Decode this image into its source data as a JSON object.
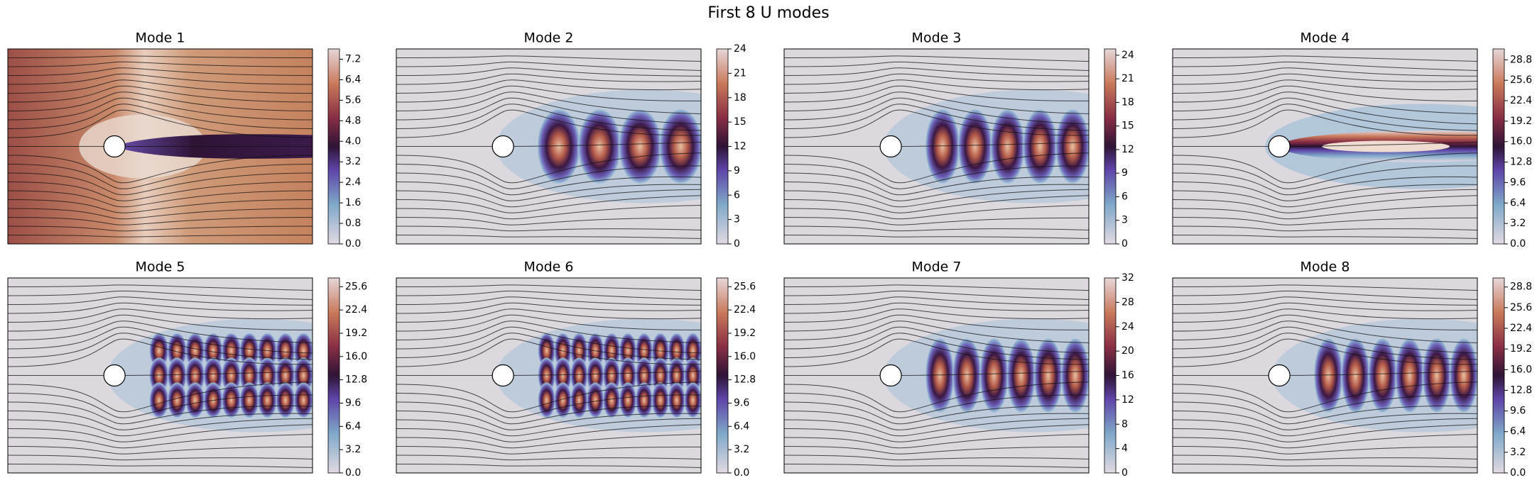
{
  "title": "First 8 U modes",
  "chart_data": [
    {
      "type": "contour",
      "title": "Mode 1",
      "ylim": [
        0,
        7.6
      ],
      "yticks": [
        {
          "value": 0,
          "label": "0.0"
        },
        0.8,
        1.6,
        2.4,
        3.2,
        {
          "value": 4,
          "label": "4.0"
        },
        4.8,
        5.6,
        6.4,
        7.2
      ]
    },
    {
      "type": "contour",
      "title": "Mode 2",
      "ylim": [
        0,
        24
      ],
      "yticks": [
        0,
        3,
        6,
        9,
        12,
        15,
        18,
        21,
        24
      ]
    },
    {
      "type": "contour",
      "title": "Mode 3",
      "ylim": [
        0,
        24.8
      ],
      "yticks": [
        0,
        3,
        6,
        9,
        12,
        15,
        18,
        21,
        24
      ]
    },
    {
      "type": "contour",
      "title": "Mode 4",
      "ylim": [
        0,
        30.5
      ],
      "yticks": [
        {
          "value": 0,
          "label": "0.0"
        },
        3.2,
        6.4,
        9.6,
        12.8,
        {
          "value": 16,
          "label": "16.0"
        },
        19.2,
        22.4,
        25.6,
        28.8
      ]
    },
    {
      "type": "contour",
      "title": "Mode 5",
      "ylim": [
        0,
        26.8
      ],
      "yticks": [
        {
          "value": 0,
          "label": "0.0"
        },
        3.2,
        6.4,
        9.6,
        12.8,
        {
          "value": 16,
          "label": "16.0"
        },
        19.2,
        22.4,
        25.6
      ]
    },
    {
      "type": "contour",
      "title": "Mode 6",
      "ylim": [
        0,
        26.8
      ],
      "yticks": [
        {
          "value": 0,
          "label": "0.0"
        },
        3.2,
        6.4,
        9.6,
        12.8,
        {
          "value": 16,
          "label": "16.0"
        },
        19.2,
        22.4,
        25.6
      ]
    },
    {
      "type": "contour",
      "title": "Mode 7",
      "ylim": [
        0,
        32
      ],
      "yticks": [
        0,
        4,
        8,
        12,
        16,
        20,
        24,
        28,
        32
      ]
    },
    {
      "type": "contour",
      "title": "Mode 8",
      "ylim": [
        0,
        30.2
      ],
      "yticks": [
        {
          "value": 0,
          "label": "0.0"
        },
        3.2,
        6.4,
        9.6,
        12.8,
        {
          "value": 16,
          "label": "16.0"
        },
        19.2,
        22.4,
        25.6,
        28.8
      ]
    }
  ]
}
